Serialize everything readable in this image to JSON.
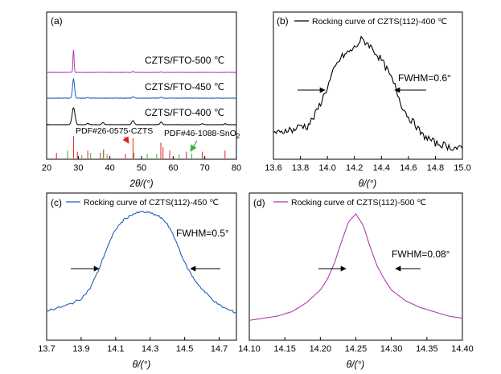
{
  "colors": {
    "black": "#000000",
    "blue": "#1f5fb4",
    "magenta": "#b03bb0",
    "red": "#e0201f",
    "green": "#3bb03b",
    "olive": "#a08a00"
  },
  "chart_data": [
    {
      "type": "line",
      "panel_label": "(a)",
      "title": "",
      "xlabel": "2θ/(°)",
      "ylabel": "",
      "xlim": [
        20,
        80
      ],
      "x_ticks": [
        "20",
        "30",
        "40",
        "50",
        "60",
        "70",
        "80"
      ],
      "legend": "none",
      "series": [
        {
          "name": "CZTS/FTO-500 ℃",
          "color": "#b03bb0",
          "offset": 2.0,
          "peaks": [
            [
              28.5,
              1.0,
              0.25
            ],
            [
              47.3,
              0.05,
              0.3
            ],
            [
              56.2,
              0.03,
              0.3
            ]
          ]
        },
        {
          "name": "CZTS/FTO-450 ℃",
          "color": "#1f5fb4",
          "offset": 1.0,
          "peaks": [
            [
              28.5,
              0.85,
              0.45
            ],
            [
              33.0,
              0.03,
              0.4
            ],
            [
              47.3,
              0.06,
              0.4
            ],
            [
              56.2,
              0.04,
              0.4
            ]
          ]
        },
        {
          "name": "CZTS/FTO-400 ℃",
          "color": "#000000",
          "offset": 0.0,
          "peaks": [
            [
              28.5,
              0.75,
              0.65
            ],
            [
              33.0,
              0.06,
              0.5
            ],
            [
              37.8,
              0.1,
              0.5
            ],
            [
              47.3,
              0.18,
              0.55
            ],
            [
              56.2,
              0.12,
              0.5
            ],
            [
              69.2,
              0.04,
              0.5
            ],
            [
              76.5,
              0.04,
              0.5
            ]
          ]
        }
      ],
      "reference_sticks": [
        {
          "name": "PDF#26-0575-CZTS",
          "color": "#e0201f",
          "x": [
            23.1,
            28.5,
            29.7,
            33.0,
            37.0,
            38.0,
            44.9,
            47.3,
            56.1,
            56.8,
            58.9,
            64.2,
            69.2,
            76.4
          ],
          "h": [
            0.25,
            1.0,
            0.3,
            0.35,
            0.25,
            0.4,
            0.2,
            0.9,
            0.7,
            0.5,
            0.35,
            0.3,
            0.3,
            0.35
          ]
        },
        {
          "name": "PDF#46-1088-SnO2",
          "color": "#3bb03b",
          "x": [
            26.6,
            33.9,
            37.9,
            51.8,
            54.8,
            61.9,
            65.9
          ],
          "h": [
            0.35,
            0.25,
            0.3,
            0.2,
            0.2,
            0.18,
            0.22
          ]
        },
        {
          "name": "",
          "color": "#a08a00",
          "x": [
            31.1,
            39.1,
            47.6
          ],
          "h": [
            0.15,
            0.2,
            0.25
          ]
        }
      ],
      "annotations": [
        "PDF#26-0575-CZTS",
        "PDF#46-1088-SnO",
        "2"
      ]
    },
    {
      "type": "line",
      "panel_label": "(b)",
      "xlabel": "θ/(°)",
      "xlim": [
        13.6,
        15.0
      ],
      "x_ticks": [
        "13.6",
        "13.8",
        "14.0",
        "14.2",
        "14.4",
        "14.6",
        "14.8",
        "15.0"
      ],
      "legend": "top-left",
      "series": [
        {
          "name": "Rocking curve of CZTS(112)-400 ℃",
          "color": "#000000",
          "x": [
            13.6,
            13.65,
            13.7,
            13.75,
            13.8,
            13.85,
            13.9,
            13.95,
            14.0,
            14.05,
            14.1,
            14.15,
            14.2,
            14.25,
            14.3,
            14.35,
            14.4,
            14.45,
            14.5,
            14.55,
            14.6,
            14.65,
            14.7,
            14.75,
            14.8,
            14.85,
            14.9,
            14.95,
            15.0
          ],
          "y": [
            0.18,
            0.16,
            0.2,
            0.19,
            0.23,
            0.22,
            0.3,
            0.42,
            0.55,
            0.7,
            0.8,
            0.84,
            0.88,
            0.95,
            0.92,
            0.85,
            0.78,
            0.68,
            0.56,
            0.4,
            0.3,
            0.24,
            0.15,
            0.12,
            0.08,
            0.07,
            0.05,
            0.04,
            0.03
          ]
        }
      ],
      "annotations": [
        "FWHM=0.6°"
      ]
    },
    {
      "type": "line",
      "panel_label": "(c)",
      "xlabel": "θ/(°)",
      "xlim": [
        13.7,
        14.8
      ],
      "x_ticks": [
        "13.7",
        "13.9",
        "14.1",
        "14.3",
        "14.5",
        "14.7"
      ],
      "legend": "top-left",
      "series": [
        {
          "name": "Rocking curve of CZTS(112)-450 ℃",
          "color": "#1f5fb4",
          "x": [
            13.7,
            13.75,
            13.8,
            13.85,
            13.9,
            13.95,
            14.0,
            14.05,
            14.1,
            14.15,
            14.2,
            14.25,
            14.3,
            14.35,
            14.4,
            14.45,
            14.5,
            14.55,
            14.6,
            14.65,
            14.7,
            14.75,
            14.8
          ],
          "y": [
            0.08,
            0.1,
            0.12,
            0.15,
            0.19,
            0.28,
            0.45,
            0.66,
            0.83,
            0.92,
            0.97,
            0.99,
            0.98,
            0.95,
            0.88,
            0.72,
            0.52,
            0.38,
            0.28,
            0.2,
            0.13,
            0.09,
            0.06
          ]
        }
      ],
      "annotations": [
        "FWHM=0.5°"
      ]
    },
    {
      "type": "line",
      "panel_label": "(d)",
      "xlabel": "θ/(°)",
      "xlim": [
        14.1,
        14.4
      ],
      "x_ticks": [
        "14.10",
        "14.15",
        "14.20",
        "14.25",
        "14.30",
        "14.35",
        "14.40"
      ],
      "legend": "top-left",
      "series": [
        {
          "name": "Rocking curve of CZTS(112)-500 ℃",
          "color": "#b03bb0",
          "x": [
            14.1,
            14.12,
            14.14,
            14.16,
            14.18,
            14.2,
            14.21,
            14.22,
            14.23,
            14.24,
            14.25,
            14.26,
            14.27,
            14.28,
            14.29,
            14.3,
            14.32,
            14.34,
            14.36,
            14.38,
            14.4
          ],
          "y": [
            0.02,
            0.04,
            0.06,
            0.1,
            0.18,
            0.3,
            0.4,
            0.55,
            0.75,
            0.93,
            1.0,
            0.9,
            0.7,
            0.52,
            0.4,
            0.3,
            0.2,
            0.14,
            0.1,
            0.06,
            0.04
          ]
        }
      ],
      "annotations": [
        "FWHM=0.08°"
      ]
    }
  ]
}
